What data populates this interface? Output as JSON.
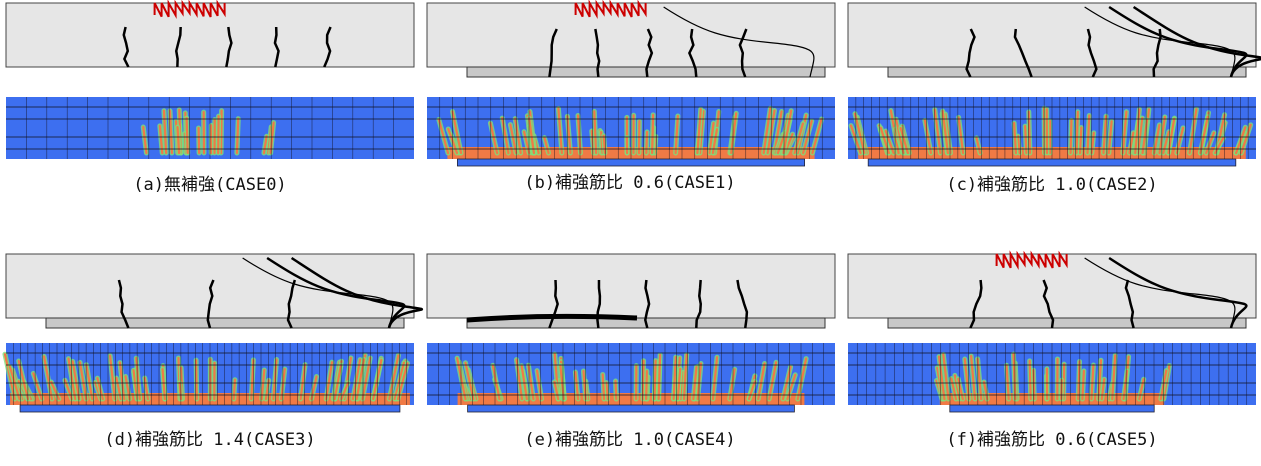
{
  "captions": [
    "(a)無補強(CASE0)",
    "(b)補強筋比 0.6(CASE1)",
    "(c)補強筋比 1.0(CASE2)",
    "(d)補強筋比 1.4(CASE3)",
    "(e)補強筋比 1.0(CASE4)",
    "(f)補強筋比 0.6(CASE5)"
  ]
}
